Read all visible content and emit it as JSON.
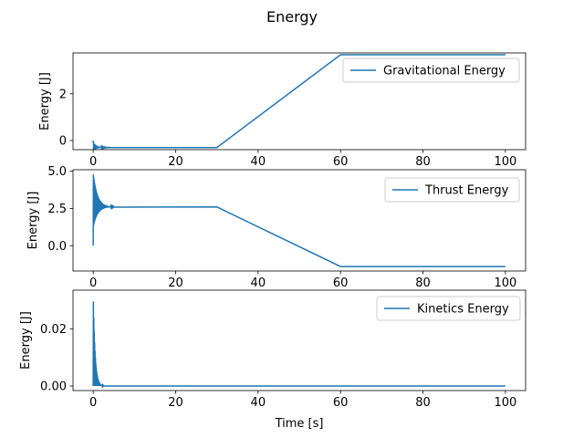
{
  "figure": {
    "title": "Energy",
    "xlabel": "Time [s]"
  },
  "chart_data": [
    {
      "type": "line",
      "title": "",
      "xlabel": "",
      "ylabel": "Energy [J]",
      "xlim": [
        -4.9,
        104.9
      ],
      "ylim": [
        -0.39,
        3.75
      ],
      "xticks": [
        0,
        20,
        40,
        60,
        80,
        100
      ],
      "yticks": [
        0,
        2
      ],
      "grid": false,
      "legend": "upper right",
      "series": [
        {
          "name": "Gravitational Energy",
          "color": "#1f77b4",
          "x": [
            0,
            30,
            60,
            100
          ],
          "y": [
            -0.3,
            -0.3,
            3.67,
            3.67
          ],
          "oscillation": {
            "start": 0,
            "end": 4,
            "from": 0.0,
            "amplitude": 0.22,
            "decay": 1.2,
            "period": 0.1
          }
        }
      ]
    },
    {
      "type": "line",
      "title": "",
      "xlabel": "",
      "ylabel": "Energy [J]",
      "xlim": [
        -4.9,
        104.9
      ],
      "ylim": [
        -1.7,
        5.1
      ],
      "xticks": [
        0,
        20,
        40,
        60,
        80,
        100
      ],
      "yticks": [
        0.0,
        2.5,
        5.0
      ],
      "grid": false,
      "legend": "upper right",
      "series": [
        {
          "name": "Thrust Energy",
          "color": "#1f77b4",
          "x": [
            0,
            30,
            60,
            100
          ],
          "y": [
            2.6,
            2.6,
            -1.4,
            -1.4
          ],
          "oscillation": {
            "start": 0,
            "end": 5,
            "from": 0.0,
            "amplitude": 2.3,
            "decay": 1.0,
            "period": 0.1
          }
        }
      ]
    },
    {
      "type": "line",
      "title": "",
      "xlabel": "Time [s]",
      "ylabel": "Energy [J]",
      "xlim": [
        -4.9,
        104.9
      ],
      "ylim": [
        -0.0016,
        0.0335
      ],
      "xticks": [
        0,
        20,
        40,
        60,
        80,
        100
      ],
      "yticks": [
        0.0,
        0.02
      ],
      "grid": false,
      "legend": "upper right",
      "series": [
        {
          "name": "Kinetics Energy",
          "color": "#1f77b4",
          "x": [
            0,
            100
          ],
          "y": [
            0.0,
            0.0
          ],
          "oscillation": {
            "start": 0,
            "end": 2.5,
            "from": 0.0,
            "amplitude": 0.033,
            "decay": 2.2,
            "period": 0.1,
            "nonnegative": true
          }
        }
      ]
    }
  ]
}
